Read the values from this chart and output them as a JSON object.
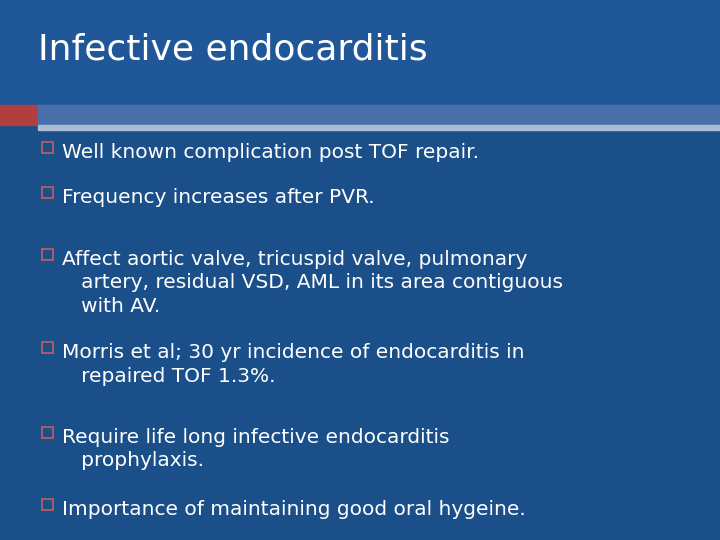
{
  "title": "Infective endocarditis",
  "bg_color": "#1B4F8A",
  "title_color": "#FFFFFF",
  "title_fontsize": 26,
  "bullet_fontsize": 14.5,
  "bullet_color": "#FFFFFF",
  "box_edge_color": "#C06060",
  "accent_bar_color": "#4A6FA8",
  "accent_bar_color2": "#A8BDD4",
  "red_block_color": "#B04040",
  "bullets": [
    "Well known complication post TOF repair.",
    "Frequency increases after PVR.",
    "Affect aortic valve, tricuspid valve, pulmonary\n   artery, residual VSD, AML in its area contiguous\n   with AV.",
    "Morris et al; 30 yr incidence of endocarditis in\n   repaired TOF 1.3%.",
    "Require life long infective endocarditis\n   prophylaxis.",
    "Importance of maintaining good oral hygeine."
  ]
}
